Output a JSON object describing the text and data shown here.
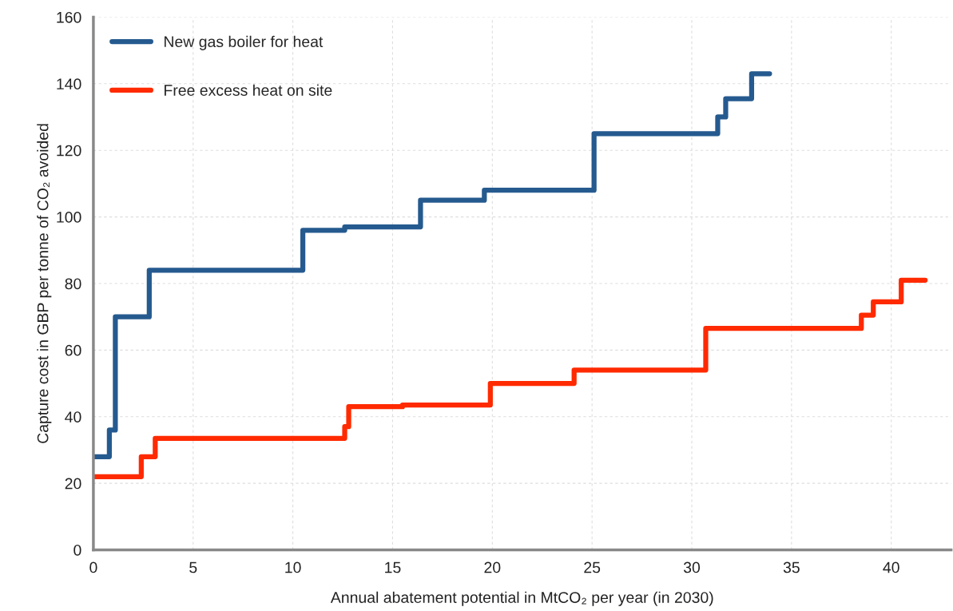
{
  "chart_data": {
    "type": "step",
    "xlabel": "Annual abatement potential in MtCO₂ per year (in 2030)",
    "ylabel": "Capture cost in GBP per tonne of CO₂ avoided",
    "series": [
      {
        "name": "New gas boiler for heat",
        "color": "#255a8f",
        "x": [
          0,
          0.8,
          1.1,
          2.8,
          10.5,
          12.6,
          16.4,
          19.6,
          25.1,
          31.3,
          31.7,
          33,
          33.9
        ],
        "values": [
          28,
          36,
          70,
          84,
          96,
          97,
          105,
          108,
          125,
          130,
          135.5,
          143,
          143
        ]
      },
      {
        "name": "Free excess heat on site",
        "color": "#ff2a00",
        "x": [
          0,
          2.4,
          3.1,
          12.6,
          12.8,
          15.5,
          19.9,
          24.1,
          30.7,
          38.5,
          39.1,
          40.5,
          41.7
        ],
        "values": [
          22,
          28,
          33.5,
          37,
          43,
          43.5,
          50,
          54,
          66.5,
          70.5,
          74.5,
          81,
          81
        ]
      }
    ],
    "xlim": [
      0,
      43
    ],
    "xticks": [
      0,
      5,
      10,
      15,
      20,
      25,
      30,
      35,
      40
    ],
    "ylim": [
      0,
      160
    ],
    "yticks": [
      0,
      20,
      40,
      60,
      80,
      100,
      120,
      140,
      160
    ],
    "grid": true,
    "legend": "top left"
  }
}
